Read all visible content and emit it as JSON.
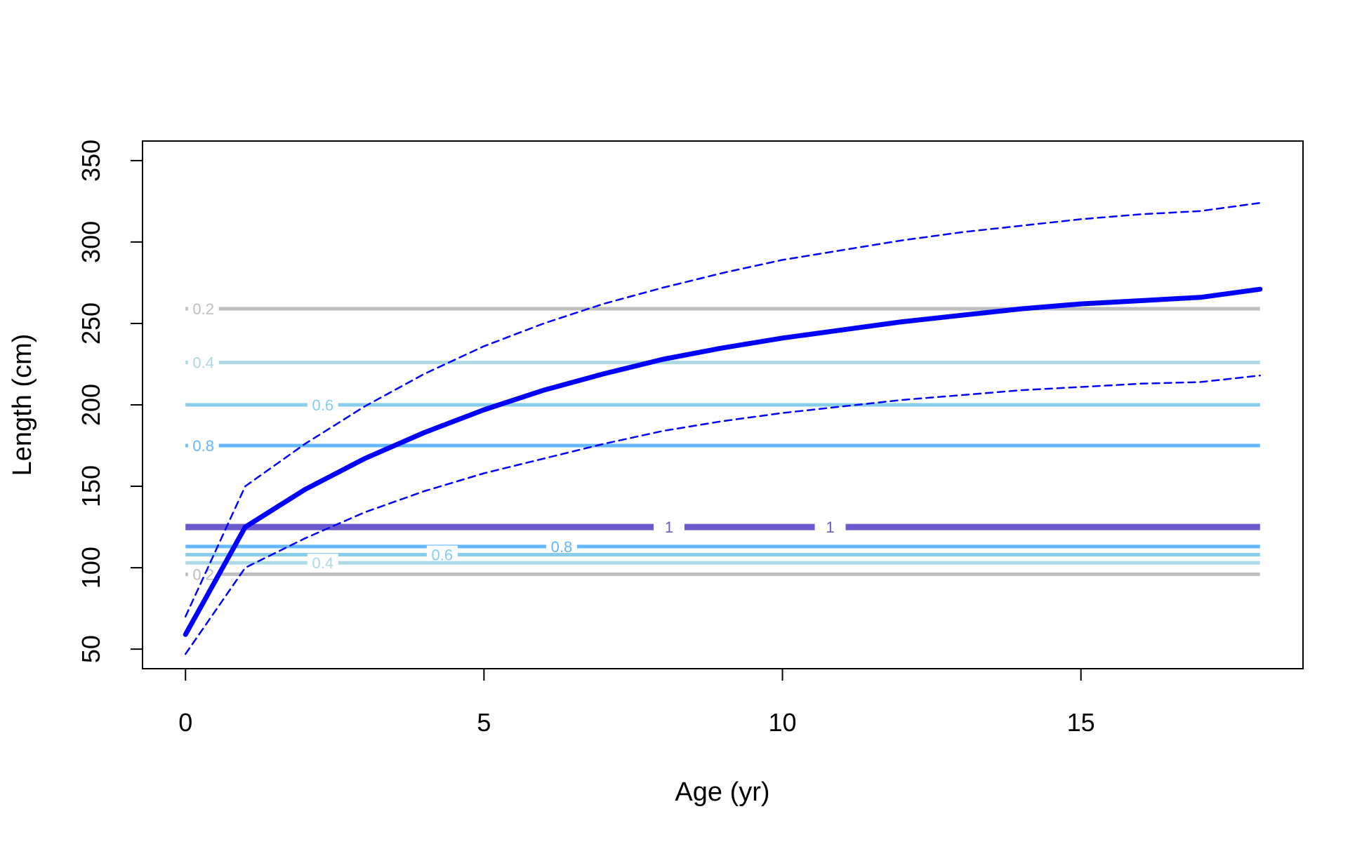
{
  "chart_data": {
    "type": "line",
    "xlabel": "Age (yr)",
    "ylabel": "Length (cm)",
    "xlim": [
      -0.72,
      18.72
    ],
    "ylim": [
      38,
      362
    ],
    "xticks": [
      0,
      5,
      10,
      15
    ],
    "yticks": [
      50,
      100,
      150,
      200,
      250,
      300,
      350
    ],
    "grid": false,
    "colors": {
      "mean": "#0000ff",
      "interval": "#0000ff",
      "level_0.2": "#bebebe",
      "level_0.4": "#add8e6",
      "level_0.6": "#87ceeb",
      "level_0.8": "#63b8ff",
      "level_1": "#6a5acd"
    },
    "series": [
      {
        "role": "mean",
        "x": [
          0,
          1,
          2,
          3,
          4,
          5,
          6,
          7,
          8,
          9,
          10,
          11,
          12,
          13,
          14,
          15,
          16,
          17,
          18
        ],
        "y": [
          59,
          125,
          148,
          167,
          183,
          197,
          209,
          219,
          228,
          235,
          241,
          246,
          251,
          255,
          259,
          262,
          264,
          266,
          271
        ]
      },
      {
        "role": "upper",
        "x": [
          0,
          1,
          2,
          3,
          4,
          5,
          6,
          7,
          8,
          9,
          10,
          11,
          12,
          13,
          14,
          15,
          16,
          17,
          18
        ],
        "y": [
          70,
          150,
          176,
          199,
          219,
          236,
          250,
          262,
          272,
          281,
          289,
          295,
          301,
          306,
          310,
          314,
          317,
          319,
          324
        ]
      },
      {
        "role": "lower",
        "x": [
          0,
          1,
          2,
          3,
          4,
          5,
          6,
          7,
          8,
          9,
          10,
          11,
          12,
          13,
          14,
          15,
          16,
          17,
          18
        ],
        "y": [
          47,
          100,
          118,
          134,
          147,
          158,
          167,
          176,
          184,
          190,
          195,
          199,
          203,
          206,
          209,
          211,
          213,
          214,
          218
        ]
      }
    ],
    "contour_lines": [
      {
        "level": "0.2",
        "y": 259,
        "labels": [
          {
            "x": 0.3,
            "text": "0.2"
          }
        ]
      },
      {
        "level": "0.4",
        "y": 226,
        "labels": [
          {
            "x": 0.3,
            "text": "0.4"
          }
        ]
      },
      {
        "level": "0.6",
        "y": 200,
        "labels": [
          {
            "x": 2.3,
            "text": "0.6"
          }
        ]
      },
      {
        "level": "0.8",
        "y": 175,
        "labels": [
          {
            "x": 0.3,
            "text": "0.8"
          }
        ]
      },
      {
        "level": "1",
        "y": 125,
        "labels": [
          {
            "x": 8.1,
            "text": "1"
          },
          {
            "x": 10.8,
            "text": "1"
          }
        ]
      },
      {
        "level": "0.8",
        "y": 113,
        "labels": [
          {
            "x": 6.3,
            "text": "0.8"
          }
        ]
      },
      {
        "level": "0.6",
        "y": 108,
        "labels": [
          {
            "x": 4.3,
            "text": "0.6"
          }
        ]
      },
      {
        "level": "0.4",
        "y": 103,
        "labels": [
          {
            "x": 2.3,
            "text": "0.4"
          }
        ]
      },
      {
        "level": "0.2",
        "y": 96,
        "labels": [
          {
            "x": 0.3,
            "text": "0.2"
          }
        ]
      }
    ]
  }
}
